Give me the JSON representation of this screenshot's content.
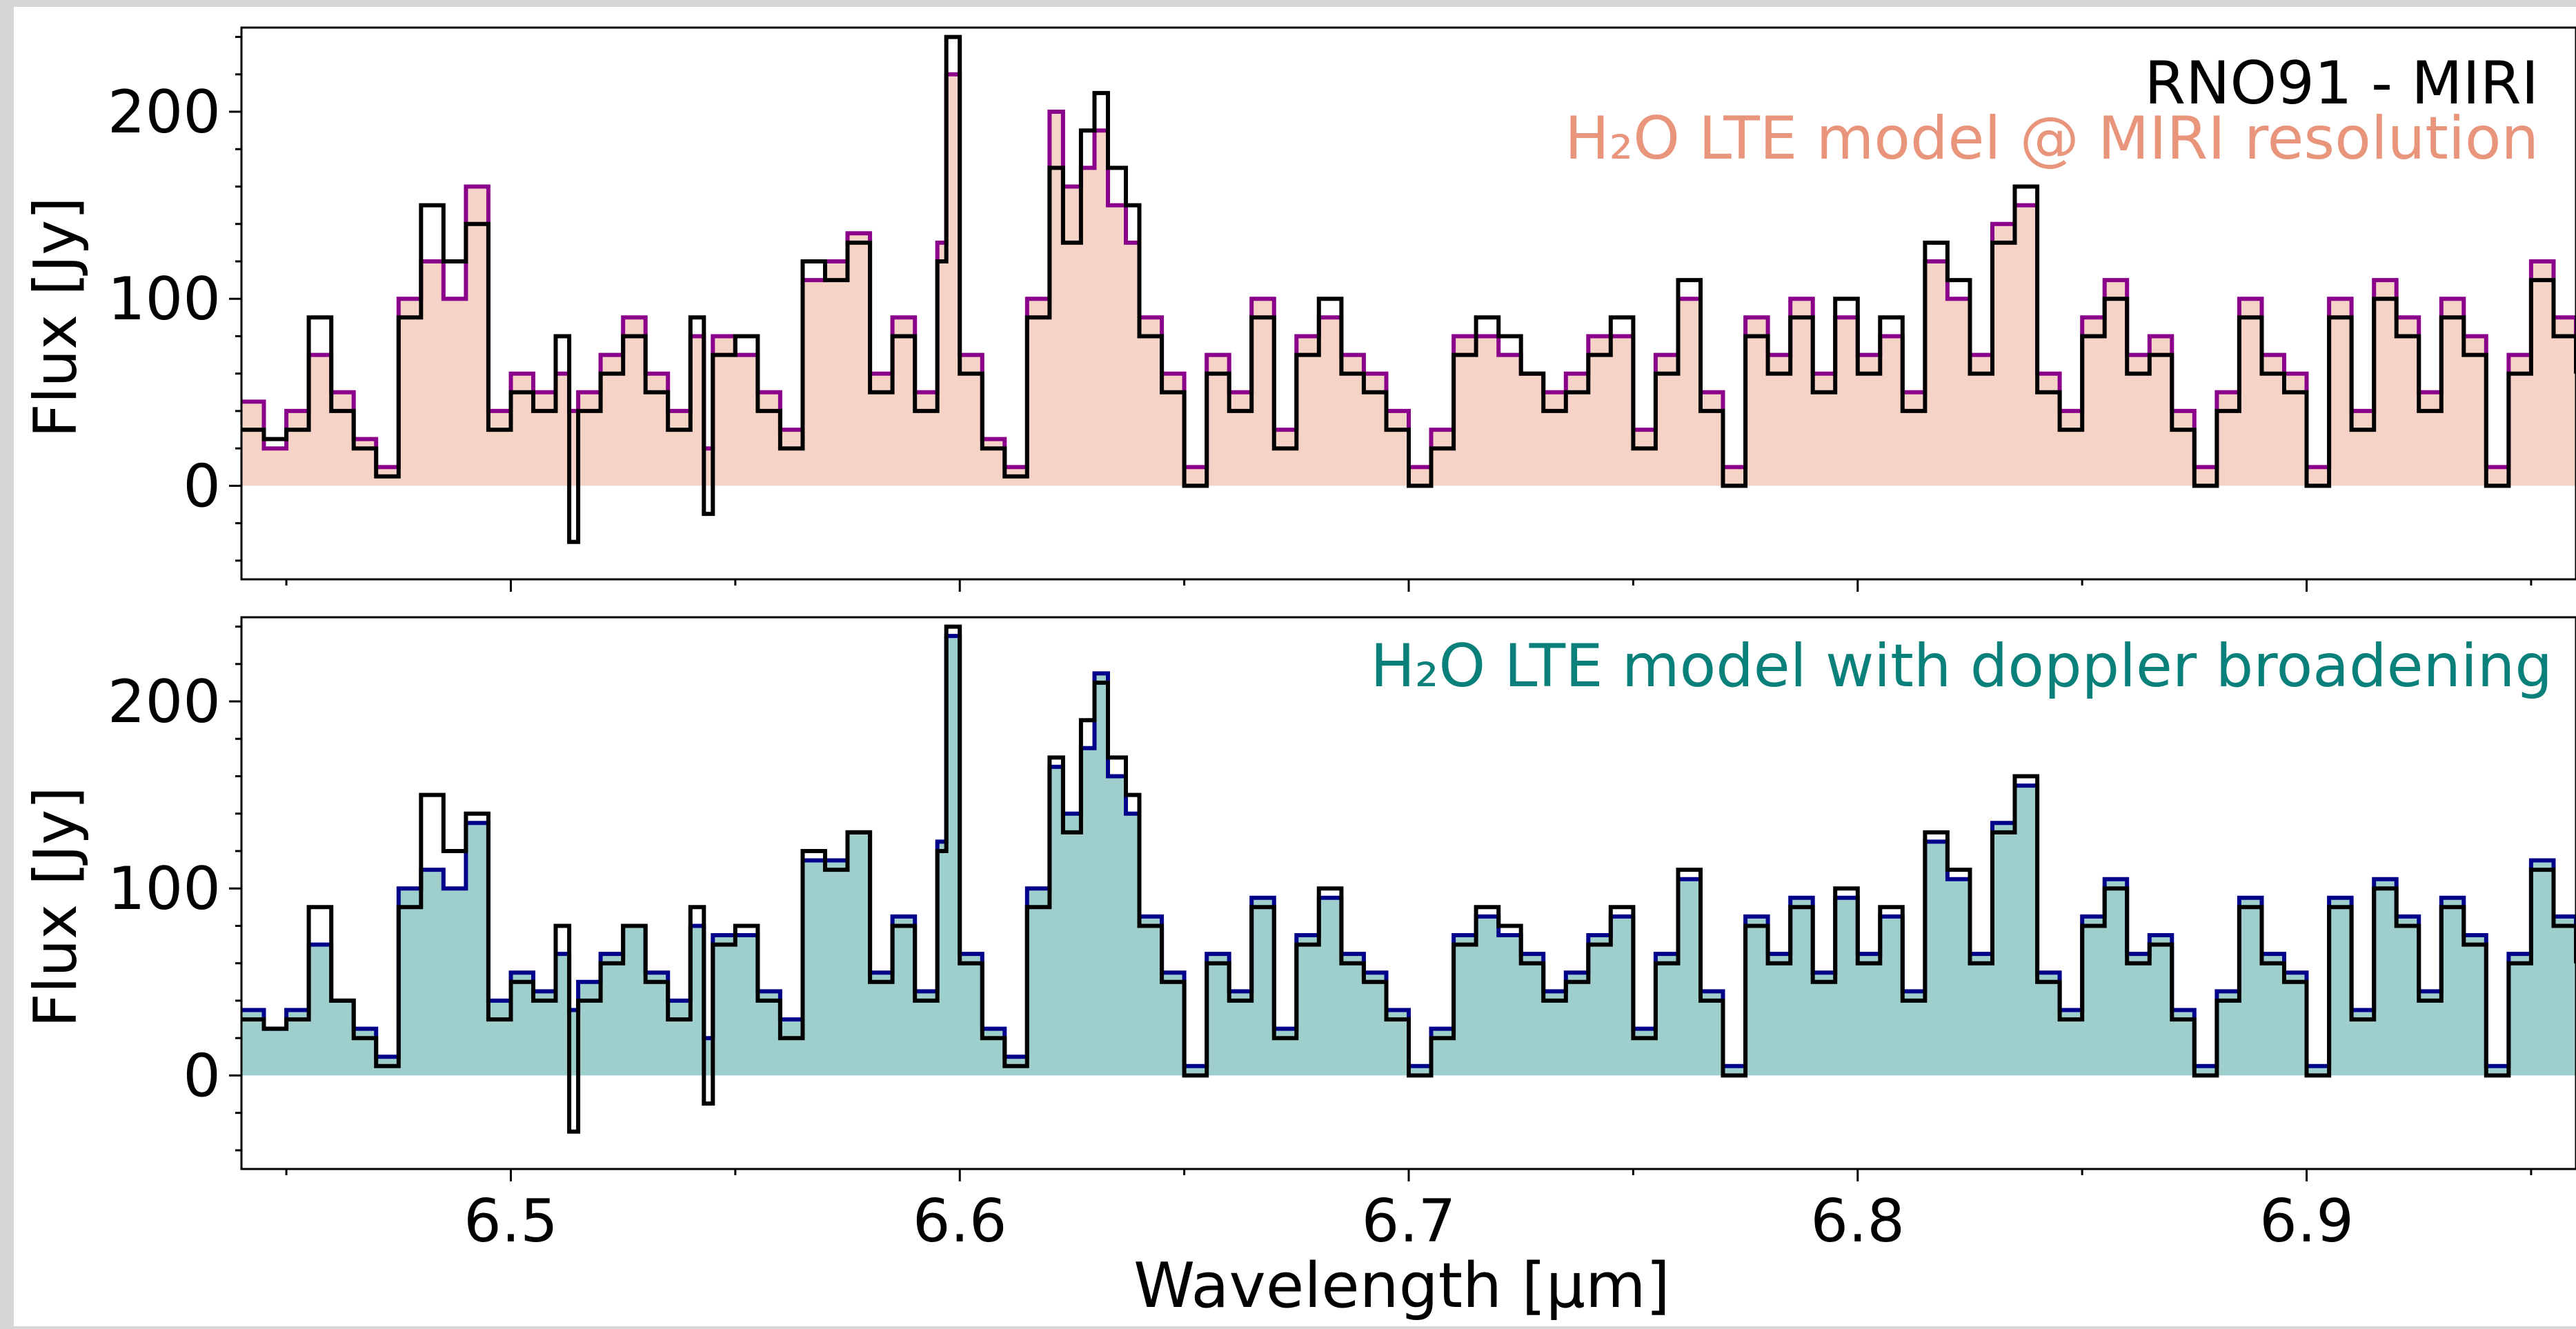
{
  "chart_data": [
    {
      "type": "line",
      "title": "",
      "ylabel": "Flux [Jy]",
      "xlabel": "",
      "xlim": [
        6.44,
        6.96
      ],
      "ylim": [
        -50,
        245
      ],
      "yticks": [
        0,
        100,
        200
      ],
      "xticks": [
        6.5,
        6.6,
        6.7,
        6.8,
        6.9
      ],
      "annotations": [
        "RNO91 - MIRI",
        "H₂O LTE model @ MIRI resolution"
      ],
      "colors": {
        "observed": "#000000",
        "model_line": "#8b008b",
        "model_fill": "#f5d3c7",
        "annotation_model": "#e8957c"
      },
      "series": [
        {
          "name": "RNO91 - MIRI",
          "x": [
            6.44,
            6.445,
            6.45,
            6.455,
            6.46,
            6.465,
            6.47,
            6.475,
            6.48,
            6.485,
            6.49,
            6.495,
            6.5,
            6.505,
            6.51,
            6.513,
            6.515,
            6.52,
            6.525,
            6.53,
            6.535,
            6.54,
            6.543,
            6.545,
            6.55,
            6.555,
            6.56,
            6.565,
            6.57,
            6.575,
            6.58,
            6.585,
            6.59,
            6.595,
            6.597,
            6.6,
            6.605,
            6.61,
            6.615,
            6.62,
            6.623,
            6.627,
            6.63,
            6.633,
            6.637,
            6.64,
            6.645,
            6.65,
            6.655,
            6.66,
            6.665,
            6.67,
            6.675,
            6.68,
            6.685,
            6.69,
            6.695,
            6.7,
            6.705,
            6.71,
            6.715,
            6.72,
            6.725,
            6.73,
            6.735,
            6.74,
            6.745,
            6.75,
            6.755,
            6.76,
            6.765,
            6.77,
            6.775,
            6.78,
            6.785,
            6.79,
            6.795,
            6.8,
            6.805,
            6.81,
            6.815,
            6.82,
            6.825,
            6.83,
            6.835,
            6.84,
            6.845,
            6.85,
            6.855,
            6.86,
            6.865,
            6.87,
            6.875,
            6.88,
            6.885,
            6.89,
            6.895,
            6.9,
            6.905,
            6.91,
            6.915,
            6.92,
            6.925,
            6.93,
            6.935,
            6.94,
            6.945,
            6.95,
            6.955,
            6.96
          ],
          "y": [
            30,
            25,
            30,
            90,
            40,
            20,
            5,
            90,
            150,
            120,
            140,
            30,
            50,
            40,
            80,
            -30,
            40,
            60,
            80,
            50,
            30,
            90,
            -15,
            70,
            80,
            40,
            20,
            120,
            110,
            130,
            50,
            80,
            40,
            120,
            240,
            60,
            20,
            5,
            90,
            170,
            130,
            190,
            210,
            170,
            150,
            80,
            50,
            0,
            60,
            40,
            90,
            20,
            70,
            100,
            60,
            50,
            30,
            0,
            20,
            70,
            90,
            80,
            60,
            40,
            50,
            70,
            90,
            20,
            60,
            110,
            40,
            0,
            80,
            60,
            90,
            50,
            100,
            60,
            90,
            40,
            130,
            110,
            60,
            130,
            160,
            50,
            30,
            80,
            100,
            60,
            70,
            30,
            0,
            40,
            90,
            60,
            50,
            0,
            90,
            30,
            100,
            80,
            40,
            90,
            70,
            0,
            60,
            110,
            80,
            60
          ]
        },
        {
          "name": "H₂O LTE model @ MIRI resolution",
          "x": [
            6.44,
            6.445,
            6.45,
            6.455,
            6.46,
            6.465,
            6.47,
            6.475,
            6.48,
            6.485,
            6.49,
            6.495,
            6.5,
            6.505,
            6.51,
            6.513,
            6.515,
            6.52,
            6.525,
            6.53,
            6.535,
            6.54,
            6.543,
            6.545,
            6.55,
            6.555,
            6.56,
            6.565,
            6.57,
            6.575,
            6.58,
            6.585,
            6.59,
            6.595,
            6.597,
            6.6,
            6.605,
            6.61,
            6.615,
            6.62,
            6.623,
            6.627,
            6.63,
            6.633,
            6.637,
            6.64,
            6.645,
            6.65,
            6.655,
            6.66,
            6.665,
            6.67,
            6.675,
            6.68,
            6.685,
            6.69,
            6.695,
            6.7,
            6.705,
            6.71,
            6.715,
            6.72,
            6.725,
            6.73,
            6.735,
            6.74,
            6.745,
            6.75,
            6.755,
            6.76,
            6.765,
            6.77,
            6.775,
            6.78,
            6.785,
            6.79,
            6.795,
            6.8,
            6.805,
            6.81,
            6.815,
            6.82,
            6.825,
            6.83,
            6.835,
            6.84,
            6.845,
            6.85,
            6.855,
            6.86,
            6.865,
            6.87,
            6.875,
            6.88,
            6.885,
            6.89,
            6.895,
            6.9,
            6.905,
            6.91,
            6.915,
            6.92,
            6.925,
            6.93,
            6.935,
            6.94,
            6.945,
            6.95,
            6.955,
            6.96
          ],
          "y": [
            45,
            20,
            40,
            70,
            50,
            25,
            10,
            100,
            120,
            100,
            160,
            40,
            60,
            50,
            60,
            40,
            50,
            70,
            90,
            60,
            40,
            80,
            20,
            80,
            70,
            50,
            30,
            110,
            120,
            135,
            60,
            90,
            50,
            130,
            220,
            70,
            25,
            10,
            100,
            200,
            160,
            170,
            190,
            150,
            130,
            90,
            60,
            10,
            70,
            50,
            100,
            30,
            80,
            90,
            70,
            60,
            40,
            10,
            30,
            80,
            80,
            70,
            60,
            50,
            60,
            80,
            80,
            30,
            70,
            100,
            50,
            10,
            90,
            70,
            100,
            60,
            90,
            70,
            80,
            50,
            120,
            100,
            70,
            140,
            150,
            60,
            40,
            90,
            110,
            70,
            80,
            40,
            10,
            50,
            100,
            70,
            60,
            10,
            100,
            40,
            110,
            90,
            50,
            100,
            80,
            10,
            70,
            120,
            90,
            70
          ]
        }
      ]
    },
    {
      "type": "line",
      "title": "",
      "ylabel": "Flux [Jy]",
      "xlabel": "Wavelength [µm]",
      "xlim": [
        6.44,
        6.96
      ],
      "ylim": [
        -50,
        245
      ],
      "yticks": [
        0,
        100,
        200
      ],
      "xticks": [
        6.5,
        6.6,
        6.7,
        6.8,
        6.9
      ],
      "xticklabels": [
        "6.5",
        "6.6",
        "6.7",
        "6.8",
        "6.9"
      ],
      "annotations": [
        "H₂O LTE model with doppler broadening"
      ],
      "colors": {
        "observed": "#000000",
        "model_line": "#00008b",
        "model_fill": "#9fcfcd",
        "annotation_model": "#0a807a"
      },
      "series": [
        {
          "name": "RNO91 - MIRI",
          "x": [
            6.44,
            6.445,
            6.45,
            6.455,
            6.46,
            6.465,
            6.47,
            6.475,
            6.48,
            6.485,
            6.49,
            6.495,
            6.5,
            6.505,
            6.51,
            6.513,
            6.515,
            6.52,
            6.525,
            6.53,
            6.535,
            6.54,
            6.543,
            6.545,
            6.55,
            6.555,
            6.56,
            6.565,
            6.57,
            6.575,
            6.58,
            6.585,
            6.59,
            6.595,
            6.597,
            6.6,
            6.605,
            6.61,
            6.615,
            6.62,
            6.623,
            6.627,
            6.63,
            6.633,
            6.637,
            6.64,
            6.645,
            6.65,
            6.655,
            6.66,
            6.665,
            6.67,
            6.675,
            6.68,
            6.685,
            6.69,
            6.695,
            6.7,
            6.705,
            6.71,
            6.715,
            6.72,
            6.725,
            6.73,
            6.735,
            6.74,
            6.745,
            6.75,
            6.755,
            6.76,
            6.765,
            6.77,
            6.775,
            6.78,
            6.785,
            6.79,
            6.795,
            6.8,
            6.805,
            6.81,
            6.815,
            6.82,
            6.825,
            6.83,
            6.835,
            6.84,
            6.845,
            6.85,
            6.855,
            6.86,
            6.865,
            6.87,
            6.875,
            6.88,
            6.885,
            6.89,
            6.895,
            6.9,
            6.905,
            6.91,
            6.915,
            6.92,
            6.925,
            6.93,
            6.935,
            6.94,
            6.945,
            6.95,
            6.955,
            6.96
          ],
          "y": [
            30,
            25,
            30,
            90,
            40,
            20,
            5,
            90,
            150,
            120,
            140,
            30,
            50,
            40,
            80,
            -30,
            40,
            60,
            80,
            50,
            30,
            90,
            -15,
            70,
            80,
            40,
            20,
            120,
            110,
            130,
            50,
            80,
            40,
            120,
            240,
            60,
            20,
            5,
            90,
            170,
            130,
            190,
            210,
            170,
            150,
            80,
            50,
            0,
            60,
            40,
            90,
            20,
            70,
            100,
            60,
            50,
            30,
            0,
            20,
            70,
            90,
            80,
            60,
            40,
            50,
            70,
            90,
            20,
            60,
            110,
            40,
            0,
            80,
            60,
            90,
            50,
            100,
            60,
            90,
            40,
            130,
            110,
            60,
            130,
            160,
            50,
            30,
            80,
            100,
            60,
            70,
            30,
            0,
            40,
            90,
            60,
            50,
            0,
            90,
            30,
            100,
            80,
            40,
            90,
            70,
            0,
            60,
            110,
            80,
            60
          ]
        },
        {
          "name": "H₂O LTE model with doppler broadening",
          "x": [
            6.44,
            6.445,
            6.45,
            6.455,
            6.46,
            6.465,
            6.47,
            6.475,
            6.48,
            6.485,
            6.49,
            6.495,
            6.5,
            6.505,
            6.51,
            6.513,
            6.515,
            6.52,
            6.525,
            6.53,
            6.535,
            6.54,
            6.543,
            6.545,
            6.55,
            6.555,
            6.56,
            6.565,
            6.57,
            6.575,
            6.58,
            6.585,
            6.59,
            6.595,
            6.597,
            6.6,
            6.605,
            6.61,
            6.615,
            6.62,
            6.623,
            6.627,
            6.63,
            6.633,
            6.637,
            6.64,
            6.645,
            6.65,
            6.655,
            6.66,
            6.665,
            6.67,
            6.675,
            6.68,
            6.685,
            6.69,
            6.695,
            6.7,
            6.705,
            6.71,
            6.715,
            6.72,
            6.725,
            6.73,
            6.735,
            6.74,
            6.745,
            6.75,
            6.755,
            6.76,
            6.765,
            6.77,
            6.775,
            6.78,
            6.785,
            6.79,
            6.795,
            6.8,
            6.805,
            6.81,
            6.815,
            6.82,
            6.825,
            6.83,
            6.835,
            6.84,
            6.845,
            6.85,
            6.855,
            6.86,
            6.865,
            6.87,
            6.875,
            6.88,
            6.885,
            6.89,
            6.895,
            6.9,
            6.905,
            6.91,
            6.915,
            6.92,
            6.925,
            6.93,
            6.935,
            6.94,
            6.945,
            6.95,
            6.955,
            6.96
          ],
          "y": [
            35,
            25,
            35,
            70,
            40,
            25,
            10,
            100,
            110,
            100,
            135,
            40,
            55,
            45,
            65,
            35,
            50,
            65,
            80,
            55,
            40,
            80,
            20,
            75,
            75,
            45,
            30,
            115,
            115,
            130,
            55,
            85,
            45,
            125,
            235,
            65,
            25,
            10,
            100,
            165,
            140,
            175,
            215,
            160,
            140,
            85,
            55,
            5,
            65,
            45,
            95,
            25,
            75,
            95,
            65,
            55,
            35,
            5,
            25,
            75,
            85,
            75,
            65,
            45,
            55,
            75,
            85,
            25,
            65,
            105,
            45,
            5,
            85,
            65,
            95,
            55,
            95,
            65,
            85,
            45,
            125,
            105,
            65,
            135,
            155,
            55,
            35,
            85,
            105,
            65,
            75,
            35,
            5,
            45,
            95,
            65,
            55,
            5,
            95,
            35,
            105,
            85,
            45,
            95,
            75,
            5,
            65,
            115,
            85,
            65
          ]
        }
      ]
    }
  ]
}
